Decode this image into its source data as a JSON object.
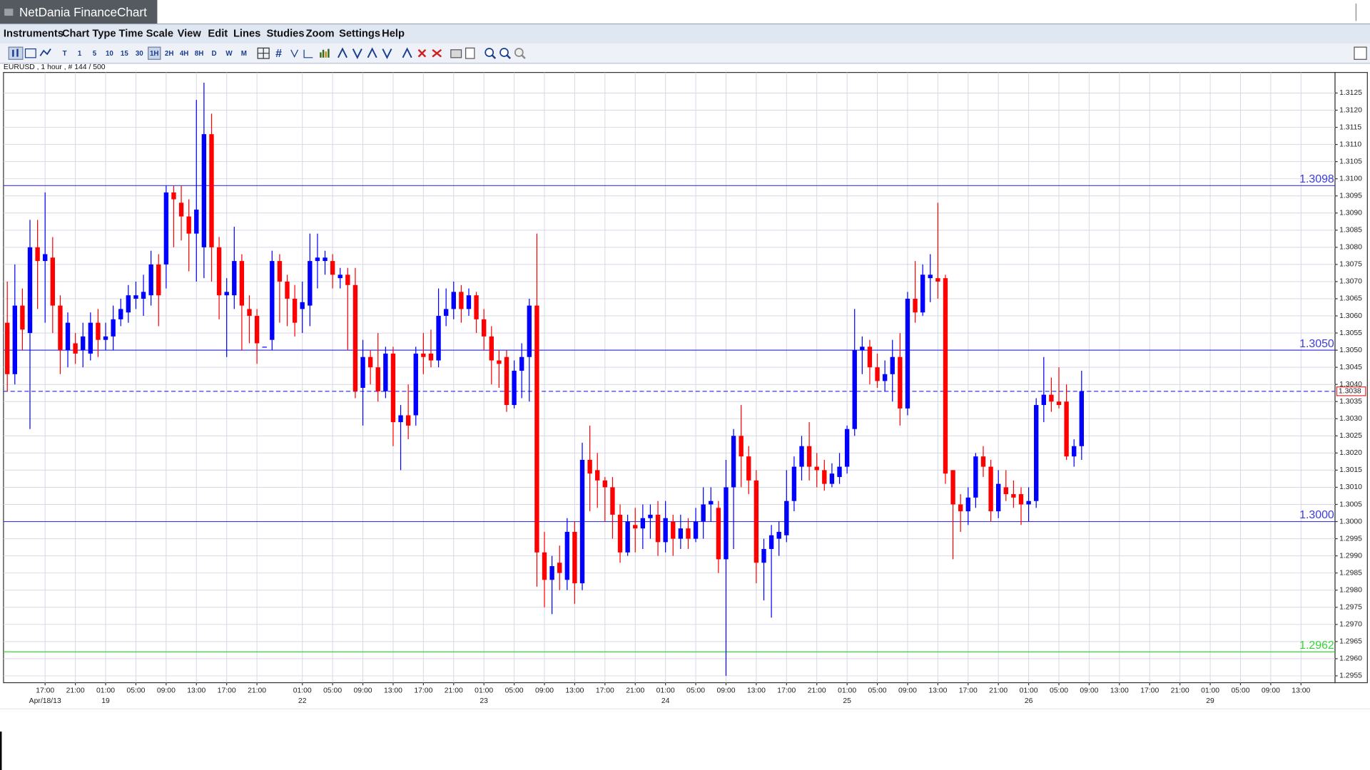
{
  "window": {
    "title": "NetDania FinanceChart"
  },
  "menu": [
    "Instruments",
    "Chart Type",
    "Time Scale",
    "View",
    "Edit",
    "Lines",
    "Studies",
    "Zoom",
    "Settings",
    "Help"
  ],
  "toolbar": {
    "timescale_buttons": [
      "T",
      "1",
      "5",
      "10",
      "15",
      "30",
      "1H",
      "2H",
      "4H",
      "8H",
      "D",
      "W",
      "M"
    ]
  },
  "chart_data": {
    "type": "candlestick",
    "instrument_label": "EURUSD , 1 hour , # 144 / 500",
    "up_color": "#0000ff",
    "down_color": "#ff0000",
    "grid": true,
    "ylim": [
      1.2953,
      1.3131
    ],
    "yticks": [
      1.2955,
      {
        "value": 1.296,
        "label": "1.2960"
      },
      1.2965,
      {
        "value": 1.297,
        "label": "1.2970"
      },
      1.2975,
      {
        "value": 1.298,
        "label": "1.2980"
      },
      1.2985,
      {
        "value": 1.299,
        "label": "1.2990"
      },
      1.2995,
      {
        "value": 1.3,
        "label": "1.3000"
      },
      1.3005,
      {
        "value": 1.301,
        "label": "1.3010"
      },
      1.3015,
      {
        "value": 1.302,
        "label": "1.3020"
      },
      1.3025,
      {
        "value": 1.303,
        "label": "1.3030"
      },
      1.3035,
      {
        "value": 1.304,
        "label": "1.3040"
      },
      1.3045,
      {
        "value": 1.305,
        "label": "1.3050"
      },
      1.3055,
      {
        "value": 1.306,
        "label": "1.3060"
      },
      1.3065,
      {
        "value": 1.307,
        "label": "1.3070"
      },
      1.3075,
      {
        "value": 1.308,
        "label": "1.3080"
      },
      1.3085,
      {
        "value": 1.309,
        "label": "1.3090"
      },
      1.3095,
      {
        "value": 1.31,
        "label": "1.3100"
      },
      1.3105,
      {
        "value": 1.311,
        "label": "1.3110"
      },
      1.3115,
      {
        "value": 1.312,
        "label": "1.3120"
      },
      1.3125
    ],
    "levels": [
      {
        "value": 1.3098,
        "color": "#3a3ae0"
      },
      {
        "value": 1.305,
        "label": "1.3050",
        "color": "#3a3ae0"
      },
      {
        "value": 1.3,
        "label": "1.3000",
        "color": "#3a3ae0"
      },
      {
        "value": 1.2962,
        "color": "#33d633"
      }
    ],
    "current_price": {
      "value": 1.3038,
      "color": "#3a3ae0",
      "marker_color": "#e03030"
    },
    "categories": [
      null,
      null,
      null,
      null,
      null,
      "17:00",
      null,
      null,
      null,
      "21:00",
      null,
      null,
      null,
      "01:00",
      null,
      null,
      null,
      "05:00",
      null,
      null,
      null,
      "09:00",
      null,
      null,
      null,
      "13:00",
      null,
      null,
      null,
      "17:00",
      null,
      null,
      null,
      "21:00",
      null,
      null,
      null,
      null,
      null,
      "01:00",
      null,
      null,
      null,
      "05:00",
      null,
      null,
      null,
      "09:00",
      null,
      null,
      null,
      "13:00",
      null,
      null,
      null,
      "17:00",
      null,
      null,
      null,
      "21:00",
      null,
      null,
      null,
      "01:00",
      null,
      null,
      null,
      "05:00",
      null,
      null,
      null,
      "09:00",
      null,
      null,
      null,
      "13:00",
      null,
      null,
      null,
      "17:00",
      null,
      null,
      null,
      "21:00",
      null,
      null,
      null,
      "01:00",
      null,
      null,
      null,
      "05:00",
      null,
      null,
      null,
      "09:00",
      null,
      null,
      null,
      "13:00",
      null,
      null,
      null,
      "17:00",
      null,
      null,
      null,
      "21:00",
      null,
      null,
      null,
      "01:00",
      null,
      null,
      null,
      "05:00",
      null,
      null,
      null,
      "09:00",
      null,
      null,
      null,
      "13:00",
      null,
      null,
      null,
      "17:00",
      null,
      null,
      null,
      "21:00",
      null,
      null,
      null,
      "01:00",
      null,
      null,
      null,
      "05:00",
      null,
      null,
      null,
      "09:00",
      null,
      null,
      null,
      "13:00",
      null,
      null,
      null,
      "17:00",
      null,
      null,
      null,
      "21:00",
      null,
      null,
      null,
      "01:00",
      null,
      null,
      null,
      "05:00",
      null,
      null,
      null,
      "09:00",
      null,
      null,
      null,
      "13:00",
      null,
      null,
      null,
      null
    ],
    "date_labels": [
      null,
      null,
      null,
      null,
      null,
      "Apr/18/13",
      null,
      null,
      null,
      null,
      null,
      null,
      null,
      "19",
      null,
      null,
      null,
      null,
      null,
      null,
      null,
      null,
      null,
      null,
      null,
      null,
      null,
      null,
      null,
      null,
      null,
      null,
      null,
      null,
      null,
      null,
      null,
      null,
      null,
      "22",
      null,
      null,
      null,
      null,
      null,
      null,
      null,
      null,
      null,
      null,
      null,
      null,
      null,
      null,
      null,
      null,
      null,
      null,
      null,
      null,
      null,
      null,
      null,
      "23",
      null,
      null,
      null,
      null,
      null,
      null,
      null,
      null,
      null,
      null,
      null,
      null,
      null,
      null,
      null,
      null,
      null,
      null,
      null,
      null,
      null,
      null,
      null,
      "24",
      null,
      null,
      null,
      null,
      null,
      null,
      null,
      null,
      null,
      null,
      null,
      null,
      null,
      null,
      null,
      null,
      null,
      null,
      null,
      null,
      null,
      null,
      null,
      "25",
      null,
      null,
      null,
      null,
      null,
      null,
      null,
      null,
      null,
      null,
      null,
      null,
      null,
      null,
      null,
      null,
      null,
      null,
      null,
      null,
      null,
      null,
      null,
      "26",
      null,
      null,
      null,
      null,
      null,
      null,
      null,
      null,
      null,
      null,
      null,
      null,
      null,
      null,
      null,
      null,
      null,
      null,
      null,
      null,
      null,
      null,
      null,
      "29",
      null,
      null,
      null,
      null,
      null,
      null,
      null,
      null,
      null,
      null,
      null,
      null,
      null,
      null,
      null,
      null
    ],
    "open": [
      1.3058,
      1.3043,
      1.3063,
      1.3055,
      1.308,
      1.3076,
      1.3077,
      1.3063,
      1.305,
      1.3052,
      1.305,
      1.3049,
      1.3058,
      1.3053,
      1.3054,
      1.3059,
      1.3061,
      1.3065,
      1.3065,
      1.3066,
      1.3075,
      1.3075,
      1.3096,
      1.3093,
      1.3089,
      1.3084,
      1.308,
      1.3113,
      1.308,
      1.3066,
      1.3066,
      1.3076,
      1.3062,
      1.306,
      1.3051,
      1.3053,
      1.3076,
      1.307,
      1.3065,
      1.3062,
      1.3063,
      1.3076,
      1.3076,
      1.3076,
      1.3071,
      1.3072,
      1.3069,
      1.3039,
      1.3048,
      1.3045,
      1.3038,
      1.3049,
      1.3029,
      1.3031,
      1.3031,
      1.3049,
      1.3049,
      1.3047,
      1.306,
      1.3062,
      1.3067,
      1.3062,
      1.3066,
      1.3059,
      1.3054,
      1.3047,
      1.3048,
      1.3034,
      1.3044,
      1.3048,
      1.3063,
      1.2991,
      1.2983,
      1.2988,
      1.2983,
      1.2997,
      1.2982,
      1.3018,
      1.3015,
      1.3012,
      1.301,
      1.3002,
      1.2991,
      1.2999,
      1.2998,
      1.3001,
      1.3002,
      1.2994,
      1.3,
      1.2995,
      1.2998,
      1.2995,
      1.3,
      1.3005,
      1.3004,
      1.2989,
      1.301,
      1.3025,
      1.3019,
      1.3012,
      1.2988,
      1.2992,
      1.2995,
      1.2996,
      1.3006,
      1.3016,
      1.3022,
      1.3016,
      1.3015,
      1.3011,
      1.3013,
      1.3016,
      1.3027,
      1.305,
      1.3051,
      1.3045,
      1.3041,
      1.3043,
      1.3048,
      1.3033,
      1.3065,
      1.3061,
      1.3071,
      1.3071,
      1.3071,
      1.3015,
      1.3005,
      1.3003,
      1.3007,
      1.3019,
      1.3016,
      1.3003,
      1.301,
      1.3008,
      1.3008,
      1.3005,
      1.3006,
      1.3034,
      1.3037,
      1.3035,
      1.3035,
      1.3019,
      1.3022,
      null,
      null,
      null,
      null,
      null,
      null,
      null,
      null,
      null,
      null,
      null,
      null,
      null,
      null,
      null,
      null,
      null,
      null,
      null,
      null,
      null,
      null,
      null,
      null,
      null,
      null,
      null,
      null,
      null,
      null,
      null,
      null,
      null
    ],
    "high": [
      1.307,
      1.3075,
      1.3068,
      1.3088,
      1.3088,
      1.3096,
      1.3083,
      1.3066,
      1.3061,
      1.3055,
      1.3058,
      1.3061,
      1.3062,
      1.3058,
      1.3063,
      1.3065,
      1.3069,
      1.307,
      1.3072,
      1.3079,
      1.3078,
      1.3098,
      1.3098,
      1.3098,
      1.3094,
      1.3123,
      1.3128,
      1.3119,
      1.3083,
      1.3071,
      1.3086,
      1.3078,
      1.3066,
      1.3062,
      1.3051,
      1.3079,
      1.3078,
      1.3072,
      1.3069,
      1.307,
      1.3084,
      1.3084,
      1.3079,
      1.3078,
      1.3074,
      1.3074,
      1.3074,
      1.3053,
      1.305,
      1.3055,
      1.3051,
      1.3051,
      1.3034,
      1.304,
      1.3051,
      1.3055,
      1.3056,
      1.3068,
      1.3068,
      1.307,
      1.3069,
      1.3068,
      1.3067,
      1.3062,
      1.3057,
      1.305,
      1.305,
      1.3047,
      1.3052,
      1.3065,
      1.3084,
      1.2997,
      1.299,
      1.2993,
      1.3001,
      1.3,
      1.3023,
      1.3028,
      1.302,
      1.3013,
      1.3013,
      1.3005,
      1.3002,
      1.3004,
      1.3005,
      1.3005,
      1.3006,
      1.3006,
      1.3002,
      1.3002,
      1.3001,
      1.3004,
      1.301,
      1.301,
      1.3006,
      1.3018,
      1.3027,
      1.3034,
      1.3022,
      1.3015,
      1.2995,
      1.2999,
      1.3,
      1.3015,
      1.3019,
      1.3025,
      1.3029,
      1.302,
      1.3018,
      1.3017,
      1.302,
      1.3028,
      1.3062,
      1.3054,
      1.3053,
      1.3049,
      1.3047,
      1.3053,
      1.3055,
      1.3067,
      1.3076,
      1.3075,
      1.3078,
      1.3093,
      1.3072,
      1.3015,
      1.3008,
      1.301,
      1.302,
      1.3022,
      1.3018,
      1.3015,
      1.3015,
      1.3012,
      1.301,
      1.301,
      1.3036,
      1.3048,
      1.3042,
      1.3045,
      1.304,
      1.3024,
      1.3044,
      null,
      null,
      null,
      null,
      null,
      null,
      null,
      null,
      null,
      null,
      null,
      null,
      null,
      null,
      null,
      null,
      null,
      null,
      null,
      null,
      null,
      null,
      null,
      null,
      null,
      null,
      null,
      null,
      null,
      null,
      null,
      null,
      null
    ],
    "low": [
      1.3038,
      1.304,
      1.305,
      1.3027,
      1.3062,
      1.3058,
      1.3055,
      1.3043,
      1.3045,
      1.3046,
      1.3045,
      1.3047,
      1.3048,
      1.305,
      1.305,
      1.3057,
      1.3058,
      1.3062,
      1.306,
      1.3063,
      1.3057,
      1.3068,
      1.308,
      1.3082,
      1.3073,
      1.307,
      1.3071,
      1.307,
      1.3059,
      1.3048,
      1.3062,
      1.305,
      1.3052,
      1.3046,
      1.3051,
      1.305,
      1.3058,
      1.3057,
      1.3054,
      1.3055,
      1.3057,
      1.3068,
      1.3072,
      1.3068,
      1.3068,
      1.305,
      1.3036,
      1.3028,
      1.304,
      1.3035,
      1.3036,
      1.3022,
      1.3015,
      1.3024,
      1.3028,
      1.3043,
      1.3045,
      1.3045,
      1.3057,
      1.3059,
      1.3058,
      1.306,
      1.3055,
      1.305,
      1.304,
      1.3039,
      1.3032,
      1.3033,
      1.3036,
      1.3035,
      1.2981,
      1.2975,
      1.2973,
      1.298,
      1.298,
      1.2976,
      1.298,
      1.3003,
      1.3004,
      1.3,
      1.2995,
      1.2988,
      1.299,
      1.2991,
      1.2992,
      1.2995,
      1.299,
      1.2991,
      1.299,
      1.2992,
      1.2992,
      1.2994,
      1.2995,
      1.3,
      1.2985,
      1.2955,
      1.2992,
      1.301,
      1.3008,
      1.2982,
      1.2977,
      1.2972,
      1.299,
      1.2994,
      1.3003,
      1.3012,
      1.3012,
      1.301,
      1.3009,
      1.301,
      1.3011,
      1.3014,
      1.3025,
      1.3043,
      1.304,
      1.3039,
      1.3038,
      1.3035,
      1.3028,
      1.3031,
      1.3058,
      1.306,
      1.3064,
      1.3065,
      1.3011,
      1.2989,
      1.2997,
      1.2999,
      1.3004,
      1.3013,
      1.3,
      1.3001,
      1.3006,
      1.3004,
      1.2999,
      1.3,
      1.3004,
      1.3029,
      1.3032,
      1.3033,
      1.3018,
      1.3016,
      1.3018,
      null,
      null,
      null,
      null,
      null,
      null,
      null,
      null,
      null,
      null,
      null,
      null,
      null,
      null,
      null,
      null,
      null,
      null,
      null,
      null,
      null,
      null,
      null,
      null,
      null,
      null,
      null,
      null,
      null,
      null,
      null,
      null,
      null
    ],
    "close": [
      1.3043,
      1.3063,
      1.3056,
      1.308,
      1.3076,
      1.3078,
      1.3063,
      1.305,
      1.3058,
      1.3049,
      1.3054,
      1.3058,
      1.3053,
      1.3054,
      1.3059,
      1.3062,
      1.3066,
      1.3066,
      1.3067,
      1.3075,
      1.3066,
      1.3096,
      1.3094,
      1.3089,
      1.3084,
      1.3091,
      1.3113,
      1.308,
      1.3066,
      1.3067,
      1.3076,
      1.3063,
      1.306,
      1.3052,
      1.3051,
      1.3076,
      1.307,
      1.3065,
      1.3058,
      1.3064,
      1.3076,
      1.3077,
      1.3077,
      1.3072,
      1.3072,
      1.3069,
      1.3038,
      1.3048,
      1.3045,
      1.3038,
      1.3049,
      1.3029,
      1.3031,
      1.3028,
      1.3049,
      1.3048,
      1.3047,
      1.306,
      1.3062,
      1.3067,
      1.3062,
      1.3066,
      1.3059,
      1.3054,
      1.3047,
      1.3046,
      1.3034,
      1.3044,
      1.3048,
      1.3063,
      1.2991,
      1.2983,
      1.2987,
      1.2985,
      1.2997,
      1.2982,
      1.3018,
      1.3014,
      1.3012,
      1.301,
      1.3002,
      1.2991,
      1.3,
      1.2998,
      1.3001,
      1.3002,
      1.2994,
      1.3001,
      1.2995,
      1.2998,
      1.2995,
      1.3,
      1.3005,
      1.3006,
      1.2989,
      1.301,
      1.3025,
      1.3019,
      1.3012,
      1.2988,
      1.2992,
      1.2996,
      1.2997,
      1.3006,
      1.3016,
      1.3022,
      1.3016,
      1.3015,
      1.3011,
      1.3014,
      1.3016,
      1.3027,
      1.305,
      1.3051,
      1.3045,
      1.3041,
      1.3043,
      1.3048,
      1.3033,
      1.3065,
      1.3061,
      1.3072,
      1.3072,
      1.307,
      1.3014,
      1.3005,
      1.3003,
      1.3007,
      1.3019,
      1.3016,
      1.3003,
      1.3011,
      1.3008,
      1.3007,
      1.3005,
      1.3006,
      1.3034,
      1.3037,
      1.3035,
      1.3034,
      1.3019,
      1.3022,
      1.3038,
      null,
      null,
      null,
      null,
      null,
      null,
      null,
      null,
      null,
      null,
      null,
      null,
      null,
      null,
      null,
      null,
      null,
      null,
      null,
      null,
      null,
      null,
      null,
      null,
      null,
      null,
      null,
      null,
      null,
      null,
      null,
      null,
      null
    ]
  }
}
